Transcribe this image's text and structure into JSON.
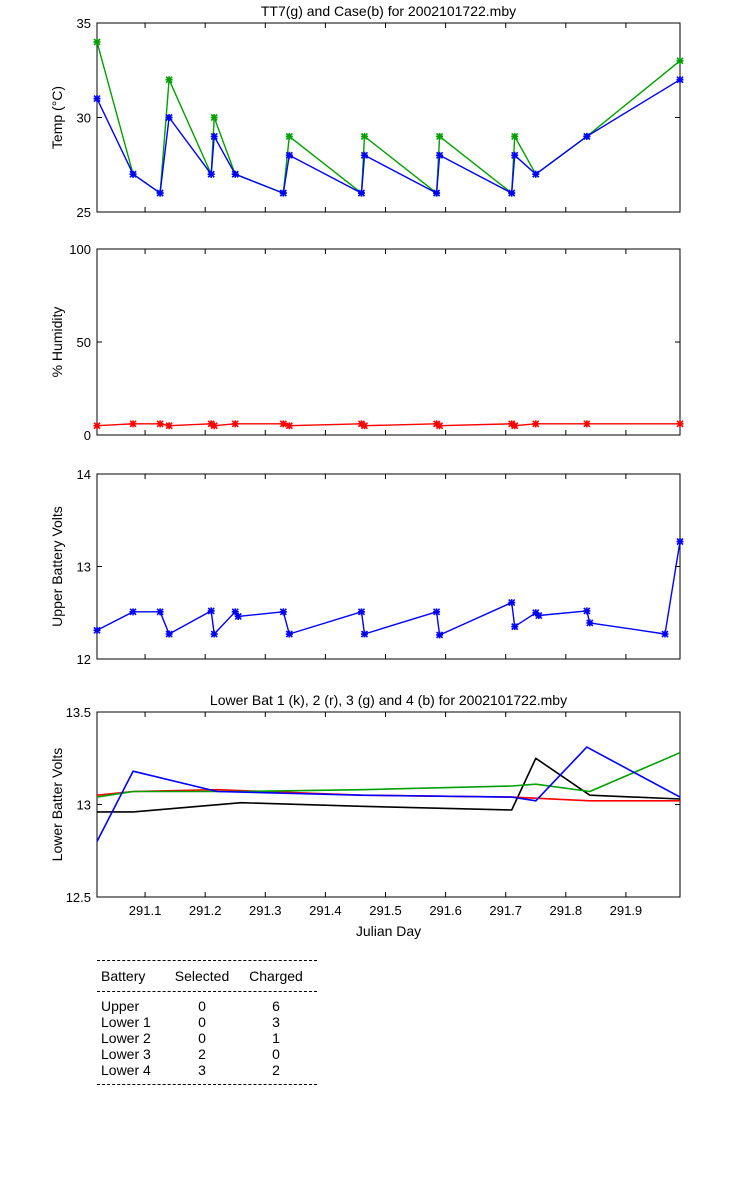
{
  "chart_data": [
    {
      "type": "line",
      "title": "TT7(g) and Case(b) for 2002101722.mby",
      "ylabel": "Temp  (°C)",
      "xlabel": "",
      "xlim": [
        291.02,
        291.99
      ],
      "ylim": [
        25,
        35
      ],
      "yticks": [
        25,
        30,
        35
      ],
      "series": [
        {
          "name": "TT7",
          "color": "#00a000",
          "markers": true,
          "x": [
            291.02,
            291.08,
            291.125,
            291.14,
            291.21,
            291.215,
            291.25,
            291.33,
            291.34,
            291.46,
            291.465,
            291.585,
            291.59,
            291.71,
            291.715,
            291.75,
            291.835,
            291.99
          ],
          "y": [
            34,
            27,
            26,
            32,
            27,
            30,
            27,
            26,
            29,
            26,
            29,
            26,
            29,
            26,
            29,
            27,
            29,
            33
          ]
        },
        {
          "name": "Case",
          "color": "#0000ff",
          "markers": true,
          "x": [
            291.02,
            291.08,
            291.125,
            291.14,
            291.21,
            291.215,
            291.25,
            291.33,
            291.34,
            291.46,
            291.465,
            291.585,
            291.59,
            291.71,
            291.715,
            291.75,
            291.835,
            291.99
          ],
          "y": [
            31,
            27,
            26,
            30,
            27,
            29,
            27,
            26,
            28,
            26,
            28,
            26,
            28,
            26,
            28,
            27,
            29,
            32
          ]
        }
      ]
    },
    {
      "type": "line",
      "title": "",
      "ylabel": "% Humidity",
      "xlabel": "",
      "xlim": [
        291.02,
        291.99
      ],
      "ylim": [
        0,
        100
      ],
      "yticks": [
        0,
        50,
        100
      ],
      "series": [
        {
          "name": "Humidity",
          "color": "#ff0000",
          "markers": true,
          "x": [
            291.02,
            291.08,
            291.125,
            291.14,
            291.21,
            291.215,
            291.25,
            291.33,
            291.34,
            291.46,
            291.465,
            291.585,
            291.59,
            291.71,
            291.715,
            291.75,
            291.835,
            291.99
          ],
          "y": [
            5,
            6,
            6,
            5,
            6,
            5,
            6,
            6,
            5,
            6,
            5,
            6,
            5,
            6,
            5,
            6,
            6,
            6
          ]
        }
      ]
    },
    {
      "type": "line",
      "title": "",
      "ylabel": "Upper Battery Volts",
      "xlabel": "",
      "xlim": [
        291.02,
        291.99
      ],
      "ylim": [
        12,
        14
      ],
      "yticks": [
        12,
        13,
        14
      ],
      "series": [
        {
          "name": "Upper",
          "color": "#0000ff",
          "markers": true,
          "x": [
            291.02,
            291.08,
            291.125,
            291.14,
            291.21,
            291.215,
            291.25,
            291.255,
            291.33,
            291.34,
            291.46,
            291.465,
            291.585,
            291.59,
            291.71,
            291.715,
            291.75,
            291.755,
            291.835,
            291.84,
            291.965,
            291.99
          ],
          "y": [
            12.31,
            12.51,
            12.51,
            12.27,
            12.52,
            12.27,
            12.51,
            12.46,
            12.51,
            12.27,
            12.51,
            12.27,
            12.51,
            12.26,
            12.61,
            12.35,
            12.5,
            12.47,
            12.52,
            12.39,
            12.27,
            13.27
          ]
        }
      ]
    },
    {
      "type": "line",
      "title": "Lower Bat 1 (k), 2 (r), 3 (g) and 4 (b) for 2002101722.mby",
      "ylabel": "Lower Batter Volts",
      "xlabel": "Julian Day",
      "xlim": [
        291.02,
        291.99
      ],
      "ylim": [
        12.5,
        13.5
      ],
      "yticks": [
        12.5,
        13,
        13.5
      ],
      "xticks": [
        291.1,
        291.2,
        291.3,
        291.4,
        291.5,
        291.6,
        291.7,
        291.8,
        291.9
      ],
      "series": [
        {
          "name": "Lower Bat 1",
          "color": "#000000",
          "markers": false,
          "x": [
            291.02,
            291.08,
            291.26,
            291.46,
            291.71,
            291.75,
            291.84,
            291.99
          ],
          "y": [
            12.96,
            12.96,
            13.01,
            12.99,
            12.97,
            13.25,
            13.05,
            13.03
          ]
        },
        {
          "name": "Lower Bat 2",
          "color": "#ff0000",
          "markers": false,
          "x": [
            291.02,
            291.08,
            291.22,
            291.46,
            291.71,
            291.84,
            291.99
          ],
          "y": [
            13.05,
            13.07,
            13.08,
            13.05,
            13.04,
            13.02,
            13.02
          ]
        },
        {
          "name": "Lower Bat 3",
          "color": "#00a000",
          "markers": false,
          "x": [
            291.02,
            291.08,
            291.26,
            291.46,
            291.71,
            291.75,
            291.84,
            291.99
          ],
          "y": [
            13.04,
            13.07,
            13.07,
            13.08,
            13.1,
            13.11,
            13.07,
            13.28
          ]
        },
        {
          "name": "Lower Bat 4",
          "color": "#0000ff",
          "markers": false,
          "x": [
            291.02,
            291.08,
            291.22,
            291.46,
            291.71,
            291.75,
            291.835,
            291.99
          ],
          "y": [
            12.8,
            13.18,
            13.07,
            13.05,
            13.04,
            13.02,
            13.31,
            13.04
          ]
        }
      ]
    }
  ],
  "battery_table": {
    "headers": [
      "Battery",
      "Selected",
      "Charged"
    ],
    "rows": [
      [
        "Upper",
        "0",
        "6"
      ],
      [
        "Lower 1",
        "0",
        "3"
      ],
      [
        "Lower 2",
        "0",
        "1"
      ],
      [
        "Lower 3",
        "2",
        "0"
      ],
      [
        "Lower 4",
        "3",
        "2"
      ]
    ]
  }
}
